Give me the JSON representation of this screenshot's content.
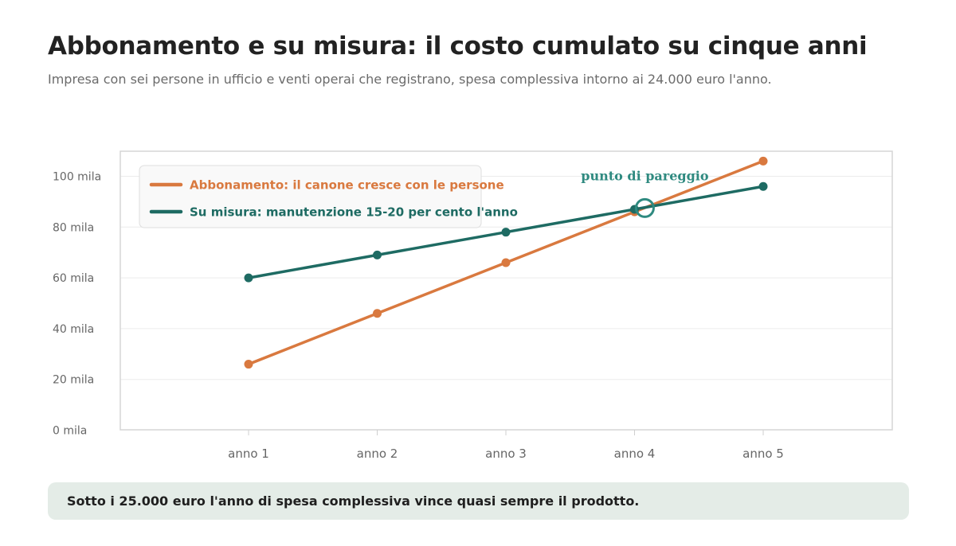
{
  "header": {
    "title": "Abbonamento e su misura: il costo cumulato su cinque anni",
    "subtitle": "Impresa con sei persone in ufficio e venti operai che registrano, spesa complessiva intorno ai 24.000 euro l'anno."
  },
  "chart_data": {
    "type": "line",
    "categories": [
      "anno 1",
      "anno 2",
      "anno 3",
      "anno 4",
      "anno 5"
    ],
    "y_ticks": [
      0,
      20,
      40,
      60,
      80,
      100
    ],
    "y_tick_labels": [
      "0 mila",
      "20 mila",
      "40 mila",
      "60 mila",
      "80 mila",
      "100 mila"
    ],
    "ylim": [
      0,
      100
    ],
    "grid": true,
    "legend_position": "top-left",
    "series": [
      {
        "name": "Abbonamento: il canone cresce con le persone",
        "values": [
          26,
          46,
          66,
          86,
          106
        ],
        "color": "#d9793f"
      },
      {
        "name": "Su misura: manutenzione 15-20 per cento l'anno",
        "values": [
          60,
          69,
          78,
          87,
          96
        ],
        "color": "#1e6b63"
      }
    ],
    "annotation": {
      "text": "punto di pareggio",
      "x": 4.08,
      "y": 87.5,
      "color": "#2f8a80"
    }
  },
  "footer": {
    "note": "Sotto i 25.000 euro l'anno di spesa complessiva vince quasi sempre il prodotto."
  }
}
